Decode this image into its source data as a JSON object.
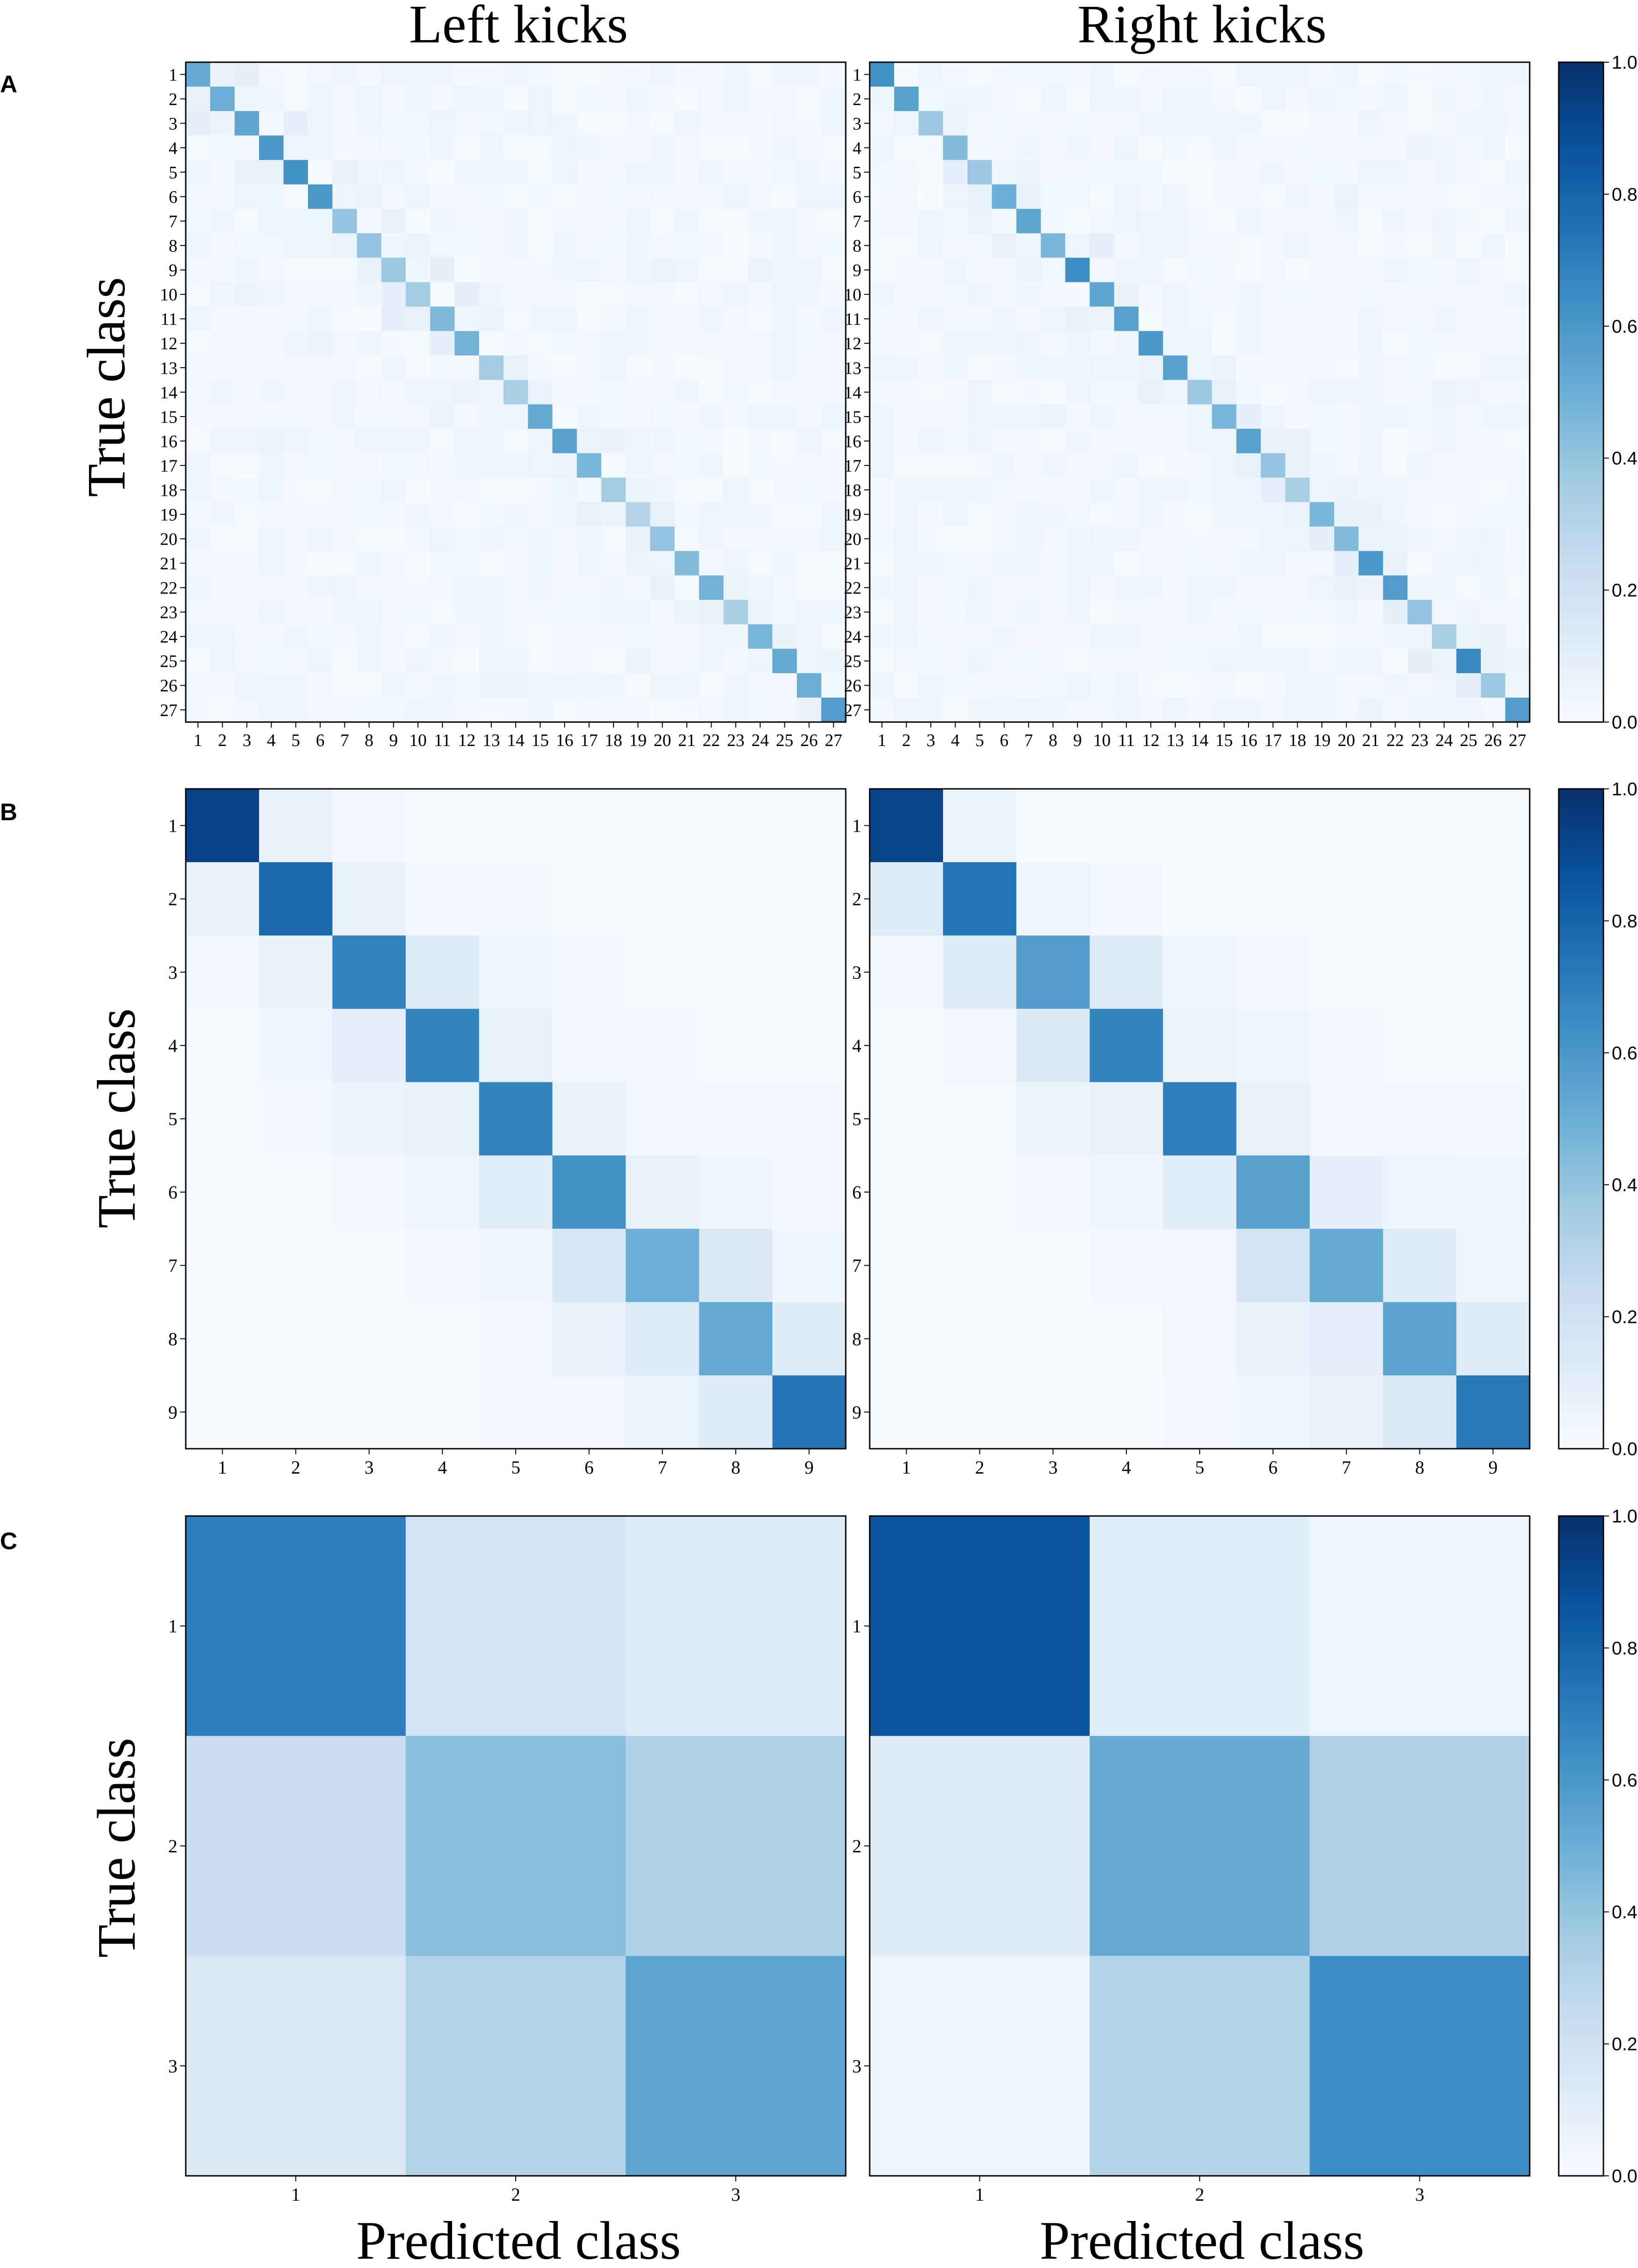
{
  "figure": {
    "column_titles": [
      "Left kicks",
      "Right kicks"
    ],
    "panel_letters": [
      "A",
      "B",
      "C"
    ],
    "ylabel": "True class",
    "xlabel": "Predicted class"
  },
  "colorbar": {
    "ticks": [
      "0.0",
      "0.2",
      "0.4",
      "0.6",
      "0.8",
      "1.0"
    ],
    "colormap": "Blues",
    "range": [
      0,
      1
    ]
  },
  "chart_data": [
    {
      "type": "heatmap",
      "panel": "A",
      "column": "Left kicks",
      "n_classes": 27,
      "labels": [
        "1",
        "2",
        "3",
        "4",
        "5",
        "6",
        "7",
        "8",
        "9",
        "10",
        "11",
        "12",
        "13",
        "14",
        "15",
        "16",
        "17",
        "18",
        "19",
        "20",
        "21",
        "22",
        "23",
        "24",
        "25",
        "26",
        "27"
      ],
      "diagonal": [
        0.52,
        0.5,
        0.54,
        0.6,
        0.62,
        0.6,
        0.4,
        0.4,
        0.38,
        0.36,
        0.45,
        0.48,
        0.36,
        0.34,
        0.52,
        0.56,
        0.46,
        0.36,
        0.3,
        0.4,
        0.44,
        0.48,
        0.34,
        0.46,
        0.52,
        0.5,
        0.58
      ],
      "off_diagonal_base": 0.03,
      "off_diagonal_spread": 0.05,
      "noise_seed": 7,
      "ylim": [
        0,
        1
      ]
    },
    {
      "type": "heatmap",
      "panel": "A",
      "column": "Right kicks",
      "n_classes": 27,
      "labels": [
        "1",
        "2",
        "3",
        "4",
        "5",
        "6",
        "7",
        "8",
        "9",
        "10",
        "11",
        "12",
        "13",
        "14",
        "15",
        "16",
        "17",
        "18",
        "19",
        "20",
        "21",
        "22",
        "23",
        "24",
        "25",
        "26",
        "27"
      ],
      "diagonal": [
        0.62,
        0.56,
        0.38,
        0.44,
        0.38,
        0.5,
        0.54,
        0.46,
        0.64,
        0.54,
        0.56,
        0.6,
        0.56,
        0.38,
        0.46,
        0.56,
        0.4,
        0.34,
        0.46,
        0.44,
        0.6,
        0.58,
        0.4,
        0.34,
        0.66,
        0.38,
        0.58
      ],
      "off_diagonal_base": 0.03,
      "off_diagonal_spread": 0.05,
      "noise_seed": 19,
      "ylim": [
        0,
        1
      ]
    },
    {
      "type": "heatmap",
      "panel": "B",
      "column": "Left kicks",
      "labels": [
        "1",
        "2",
        "3",
        "4",
        "5",
        "6",
        "7",
        "8",
        "9"
      ],
      "matrix": [
        [
          0.93,
          0.07,
          0.02,
          0.01,
          0.01,
          0.01,
          0.01,
          0.01,
          0.01
        ],
        [
          0.08,
          0.78,
          0.07,
          0.03,
          0.02,
          0.01,
          0.01,
          0.01,
          0.01
        ],
        [
          0.03,
          0.07,
          0.68,
          0.13,
          0.05,
          0.02,
          0.01,
          0.01,
          0.01
        ],
        [
          0.01,
          0.04,
          0.09,
          0.68,
          0.08,
          0.03,
          0.02,
          0.01,
          0.01
        ],
        [
          0.01,
          0.02,
          0.06,
          0.08,
          0.68,
          0.07,
          0.03,
          0.02,
          0.02
        ],
        [
          0.01,
          0.01,
          0.02,
          0.04,
          0.11,
          0.62,
          0.08,
          0.04,
          0.02
        ],
        [
          0.01,
          0.01,
          0.01,
          0.02,
          0.04,
          0.16,
          0.5,
          0.14,
          0.04
        ],
        [
          0.01,
          0.01,
          0.01,
          0.01,
          0.02,
          0.07,
          0.13,
          0.52,
          0.12
        ],
        [
          0.01,
          0.01,
          0.01,
          0.01,
          0.02,
          0.03,
          0.06,
          0.12,
          0.74
        ]
      ],
      "ylim": [
        0,
        1
      ]
    },
    {
      "type": "heatmap",
      "panel": "B",
      "column": "Right kicks",
      "labels": [
        "1",
        "2",
        "3",
        "4",
        "5",
        "6",
        "7",
        "8",
        "9"
      ],
      "matrix": [
        [
          0.92,
          0.06,
          0.01,
          0.01,
          0.01,
          0.01,
          0.01,
          0.01,
          0.01
        ],
        [
          0.13,
          0.74,
          0.05,
          0.03,
          0.01,
          0.01,
          0.01,
          0.01,
          0.01
        ],
        [
          0.02,
          0.12,
          0.58,
          0.13,
          0.04,
          0.02,
          0.01,
          0.01,
          0.01
        ],
        [
          0.01,
          0.03,
          0.14,
          0.68,
          0.06,
          0.04,
          0.02,
          0.01,
          0.01
        ],
        [
          0.01,
          0.01,
          0.06,
          0.07,
          0.7,
          0.08,
          0.03,
          0.02,
          0.02
        ],
        [
          0.01,
          0.01,
          0.02,
          0.04,
          0.11,
          0.56,
          0.09,
          0.05,
          0.04
        ],
        [
          0.01,
          0.01,
          0.01,
          0.02,
          0.03,
          0.17,
          0.52,
          0.12,
          0.05
        ],
        [
          0.01,
          0.01,
          0.01,
          0.01,
          0.03,
          0.07,
          0.1,
          0.55,
          0.13
        ],
        [
          0.01,
          0.01,
          0.01,
          0.01,
          0.02,
          0.04,
          0.07,
          0.15,
          0.72
        ]
      ],
      "ylim": [
        0,
        1
      ]
    },
    {
      "type": "heatmap",
      "panel": "C",
      "column": "Left kicks",
      "labels": [
        "1",
        "2",
        "3"
      ],
      "matrix": [
        [
          0.7,
          0.18,
          0.12
        ],
        [
          0.23,
          0.43,
          0.32
        ],
        [
          0.15,
          0.31,
          0.54
        ]
      ],
      "ylim": [
        0,
        1
      ]
    },
    {
      "type": "heatmap",
      "panel": "C",
      "column": "Right kicks",
      "labels": [
        "1",
        "2",
        "3"
      ],
      "matrix": [
        [
          0.86,
          0.11,
          0.05
        ],
        [
          0.12,
          0.52,
          0.32
        ],
        [
          0.05,
          0.31,
          0.64
        ]
      ],
      "ylim": [
        0,
        1
      ]
    }
  ]
}
